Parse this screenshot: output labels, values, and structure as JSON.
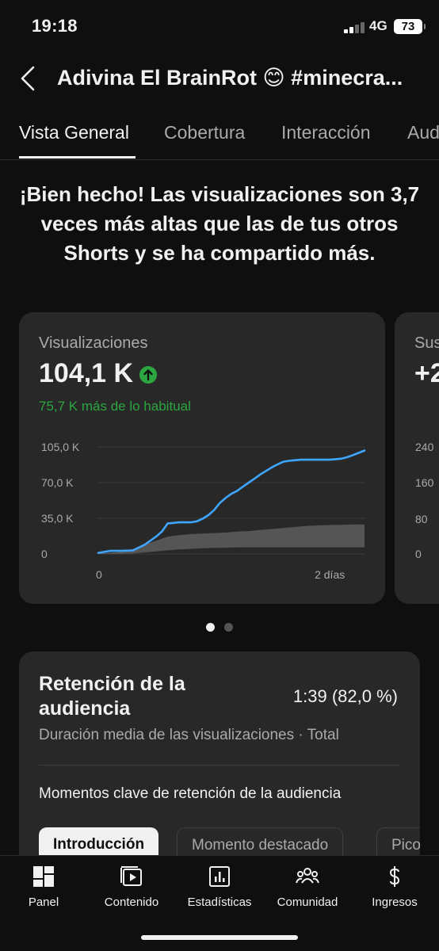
{
  "status_bar": {
    "time": "19:18",
    "network": "4G",
    "battery": "73"
  },
  "header": {
    "title": "Adivina El BrainRot 😊 #minecra..."
  },
  "tabs": [
    {
      "label": "Vista General",
      "active": true
    },
    {
      "label": "Cobertura",
      "active": false
    },
    {
      "label": "Interacción",
      "active": false
    },
    {
      "label": "Aud",
      "active": false
    }
  ],
  "headline": "¡Bien hecho! Las visualizaciones son 3,7 veces más altas que las de tus otros Shorts y se ha compartido más.",
  "views_card": {
    "label": "Visualizaciones",
    "value": "104,1 K",
    "comparison": "75,7 K más de lo habitual",
    "icon": "arrow-up-circle-icon"
  },
  "chart_data": {
    "type": "line",
    "y_ticks": [
      "105,0 K",
      "70,0 K",
      "35,0 K",
      "0"
    ],
    "x_ticks": [
      "0",
      "2 días"
    ],
    "ylim": [
      0,
      105000
    ],
    "xlim": [
      0,
      2.3
    ],
    "x_unit": "días",
    "series": [
      {
        "role": "main",
        "color": "#3ea6ff",
        "x": [
          0,
          0.1,
          0.2,
          0.3,
          0.4,
          0.45,
          0.5,
          0.55,
          0.6,
          0.65,
          0.7,
          0.75,
          0.8,
          0.85,
          0.9,
          0.95,
          1.0,
          1.05,
          1.1,
          1.15,
          1.2,
          1.25,
          1.3,
          1.35,
          1.4,
          1.45,
          1.5,
          1.55,
          1.6,
          1.65,
          1.7,
          1.75,
          1.8,
          1.85,
          1.9,
          1.95,
          2.0,
          2.05,
          2.1,
          2.15,
          2.2,
          2.3
        ],
        "values": [
          1000,
          3000,
          3000,
          3500,
          9000,
          13000,
          17000,
          22000,
          30000,
          30500,
          31000,
          31000,
          31000,
          32000,
          34500,
          38000,
          43000,
          50000,
          55000,
          59000,
          62000,
          66000,
          70000,
          74000,
          78000,
          81500,
          85000,
          88000,
          90500,
          91500,
          92000,
          92500,
          92500,
          92500,
          92500,
          92500,
          92500,
          93000,
          93500,
          95000,
          97000,
          101500
        ]
      }
    ],
    "typical_band": {
      "color": "#555555",
      "x": [
        0,
        0.2,
        0.3,
        0.4,
        0.5,
        0.6,
        0.7,
        0.8,
        0.9,
        1.0,
        1.1,
        1.2,
        1.3,
        1.4,
        1.5,
        1.6,
        1.7,
        1.8,
        1.9,
        2.0,
        2.1,
        2.2,
        2.3
      ],
      "upper": [
        500,
        2000,
        5000,
        9000,
        13000,
        17000,
        18500,
        19500,
        20000,
        20500,
        21000,
        22000,
        22500,
        23500,
        24500,
        25500,
        26500,
        27500,
        28000,
        28500,
        28500,
        29000,
        29000
      ],
      "lower": [
        0,
        0,
        500,
        1500,
        2500,
        3500,
        4500,
        5000,
        5500,
        6000,
        6000,
        6500,
        6500,
        6500,
        6500,
        6500,
        6500,
        6500,
        6500,
        6500,
        6500,
        6500,
        6500
      ]
    }
  },
  "subs_card": {
    "label": "Sus",
    "value": "+2",
    "y_ticks": [
      "240",
      "160",
      "80",
      "0"
    ]
  },
  "pager": {
    "count": 2,
    "active": 1
  },
  "retention": {
    "title": "Retención de la audiencia",
    "value": "1:39 (82,0 %)",
    "subtitle": "Duración media de las visualizaciones · Total",
    "moments_label": "Momentos clave de retención de la audiencia",
    "chips": [
      {
        "label": "Introducción",
        "active": true
      },
      {
        "label": "Momento destacado",
        "active": false
      },
      {
        "label": "Pico",
        "active": false
      }
    ]
  },
  "bottom_nav": [
    {
      "label": "Panel",
      "icon": "dashboard-icon"
    },
    {
      "label": "Contenido",
      "icon": "content-icon"
    },
    {
      "label": "Estadísticas",
      "icon": "analytics-icon"
    },
    {
      "label": "Comunidad",
      "icon": "community-icon"
    },
    {
      "label": "Ingresos",
      "icon": "dollar-icon"
    }
  ],
  "colors": {
    "background": "#0f0f0f",
    "card": "#282828",
    "accent_blue": "#3ea6ff",
    "positive_green": "#2ba640"
  }
}
